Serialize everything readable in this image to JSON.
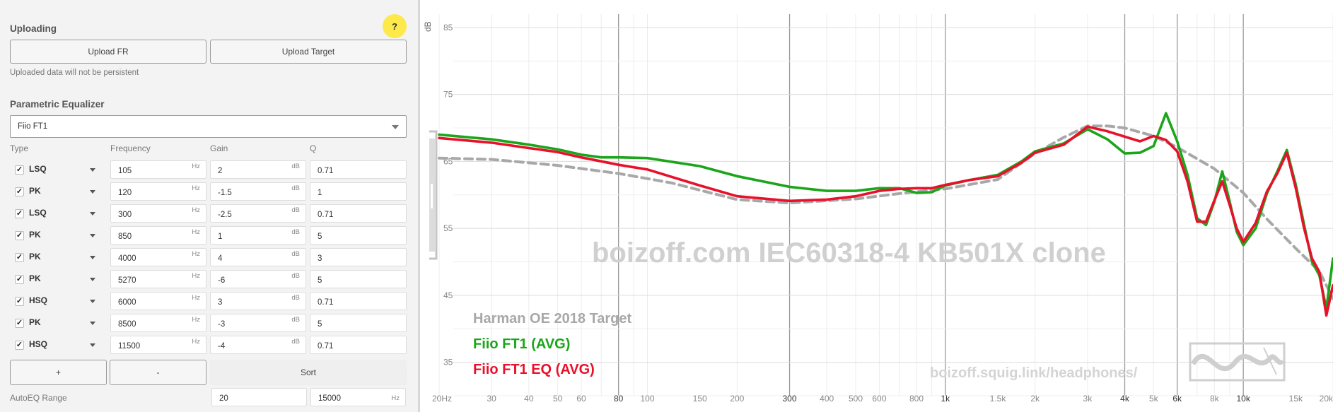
{
  "uploading": {
    "title": "Uploading",
    "upload_fr": "Upload FR",
    "upload_target": "Upload Target",
    "note": "Uploaded data will not be persistent",
    "help": "?"
  },
  "peq": {
    "title": "Parametric Equalizer",
    "preset": "Fiio FT1",
    "columns": {
      "type": "Type",
      "frequency": "Frequency",
      "gain": "Gain",
      "q": "Q"
    },
    "units": {
      "hz": "Hz",
      "db": "dB"
    },
    "filters": [
      {
        "checked": true,
        "type": "LSQ",
        "freq": "105",
        "gain": "2",
        "q": "0.71"
      },
      {
        "checked": true,
        "type": "PK",
        "freq": "120",
        "gain": "-1.5",
        "q": "1"
      },
      {
        "checked": true,
        "type": "LSQ",
        "freq": "300",
        "gain": "-2.5",
        "q": "0.71"
      },
      {
        "checked": true,
        "type": "PK",
        "freq": "850",
        "gain": "1",
        "q": "5"
      },
      {
        "checked": true,
        "type": "PK",
        "freq": "4000",
        "gain": "4",
        "q": "3"
      },
      {
        "checked": true,
        "type": "PK",
        "freq": "5270",
        "gain": "-6",
        "q": "5"
      },
      {
        "checked": true,
        "type": "HSQ",
        "freq": "6000",
        "gain": "3",
        "q": "0.71"
      },
      {
        "checked": true,
        "type": "PK",
        "freq": "8500",
        "gain": "-3",
        "q": "5"
      },
      {
        "checked": true,
        "type": "HSQ",
        "freq": "11500",
        "gain": "-4",
        "q": "0.71"
      }
    ],
    "add_label": "+",
    "remove_label": "-",
    "sort_label": "Sort",
    "autoeq_label": "AutoEQ Range",
    "autoeq_min": "20",
    "autoeq_max": "15000"
  },
  "chart_data": {
    "type": "line",
    "ylabel": "dB",
    "xscale": "log",
    "xlim": [
      20,
      20000
    ],
    "ylim": [
      30,
      87
    ],
    "y_ticks": [
      85,
      75,
      65,
      55,
      45,
      35
    ],
    "x_ticks": [
      {
        "v": 20,
        "label": "20Hz"
      },
      {
        "v": 30,
        "label": "30"
      },
      {
        "v": 40,
        "label": "40"
      },
      {
        "v": 50,
        "label": "50"
      },
      {
        "v": 60,
        "label": "60"
      },
      {
        "v": 80,
        "label": "80"
      },
      {
        "v": 100,
        "label": "100"
      },
      {
        "v": 150,
        "label": "150"
      },
      {
        "v": 200,
        "label": "200"
      },
      {
        "v": 300,
        "label": "300"
      },
      {
        "v": 400,
        "label": "400"
      },
      {
        "v": 500,
        "label": "500"
      },
      {
        "v": 600,
        "label": "600"
      },
      {
        "v": 800,
        "label": "800"
      },
      {
        "v": 1000,
        "label": "1k"
      },
      {
        "v": 1500,
        "label": "1.5k"
      },
      {
        "v": 2000,
        "label": "2k"
      },
      {
        "v": 3000,
        "label": "3k"
      },
      {
        "v": 4000,
        "label": "4k"
      },
      {
        "v": 5000,
        "label": "5k"
      },
      {
        "v": 6000,
        "label": "6k"
      },
      {
        "v": 8000,
        "label": "8k"
      },
      {
        "v": 10000,
        "label": "10k"
      },
      {
        "v": 15000,
        "label": "15k"
      },
      {
        "v": 20000,
        "label": "20k"
      }
    ],
    "bold_ticks": [
      80,
      300,
      1000,
      4000,
      6000,
      10000
    ],
    "watermark": "boizoff.com IEC60318-4 KB501X clone",
    "url": "boizoff.squig.link/headphones/",
    "grid": true,
    "series": [
      {
        "name": "Harman OE 2018 Target",
        "color": "#a8a8a8",
        "dashed": true,
        "points": [
          [
            20,
            65.5
          ],
          [
            30,
            65.3
          ],
          [
            50,
            64.4
          ],
          [
            80,
            63.2
          ],
          [
            120,
            61.8
          ],
          [
            200,
            59.3
          ],
          [
            300,
            58.8
          ],
          [
            500,
            59.4
          ],
          [
            700,
            60.2
          ],
          [
            1000,
            60.9
          ],
          [
            1500,
            62.3
          ],
          [
            2000,
            66.2
          ],
          [
            2500,
            68.6
          ],
          [
            3000,
            70.3
          ],
          [
            3500,
            70.3
          ],
          [
            4000,
            70.0
          ],
          [
            5000,
            68.8
          ],
          [
            6000,
            67.1
          ],
          [
            8000,
            63.9
          ],
          [
            10000,
            60.3
          ],
          [
            12000,
            56.4
          ],
          [
            15000,
            52.0
          ],
          [
            18000,
            48.6
          ],
          [
            20000,
            44.5
          ]
        ]
      },
      {
        "name": "Fiio FT1 (AVG)",
        "color": "#1aa51a",
        "dashed": false,
        "points": [
          [
            20,
            69.0
          ],
          [
            30,
            68.3
          ],
          [
            40,
            67.5
          ],
          [
            50,
            66.8
          ],
          [
            60,
            66.0
          ],
          [
            70,
            65.6
          ],
          [
            80,
            65.6
          ],
          [
            100,
            65.5
          ],
          [
            150,
            64.3
          ],
          [
            200,
            62.8
          ],
          [
            300,
            61.2
          ],
          [
            400,
            60.6
          ],
          [
            500,
            60.6
          ],
          [
            600,
            61.0
          ],
          [
            700,
            61.0
          ],
          [
            800,
            60.3
          ],
          [
            900,
            60.4
          ],
          [
            1000,
            61.4
          ],
          [
            1200,
            62.2
          ],
          [
            1500,
            63.0
          ],
          [
            1800,
            65.0
          ],
          [
            2000,
            66.5
          ],
          [
            2500,
            67.7
          ],
          [
            3000,
            69.8
          ],
          [
            3500,
            68.3
          ],
          [
            4000,
            66.2
          ],
          [
            4500,
            66.3
          ],
          [
            5000,
            67.3
          ],
          [
            5500,
            72.2
          ],
          [
            6000,
            68.0
          ],
          [
            6500,
            63.0
          ],
          [
            7000,
            56.5
          ],
          [
            7500,
            55.5
          ],
          [
            8000,
            59.0
          ],
          [
            8500,
            63.5
          ],
          [
            9000,
            59.0
          ],
          [
            9500,
            54.5
          ],
          [
            10000,
            52.5
          ],
          [
            11000,
            55.0
          ],
          [
            12000,
            60.2
          ],
          [
            13000,
            63.5
          ],
          [
            14000,
            66.7
          ],
          [
            15000,
            61.5
          ],
          [
            16000,
            55.5
          ],
          [
            17000,
            50.0
          ],
          [
            18000,
            48.0
          ],
          [
            19000,
            43.0
          ],
          [
            20000,
            50.5
          ]
        ]
      },
      {
        "name": "Fiio FT1 EQ (AVG)",
        "color": "#e8102a",
        "dashed": false,
        "points": [
          [
            20,
            68.5
          ],
          [
            30,
            67.8
          ],
          [
            40,
            67.0
          ],
          [
            50,
            66.4
          ],
          [
            60,
            65.6
          ],
          [
            80,
            64.5
          ],
          [
            100,
            63.8
          ],
          [
            150,
            61.4
          ],
          [
            200,
            59.8
          ],
          [
            300,
            59.1
          ],
          [
            400,
            59.3
          ],
          [
            500,
            59.8
          ],
          [
            600,
            60.6
          ],
          [
            700,
            60.9
          ],
          [
            800,
            61.0
          ],
          [
            900,
            61.0
          ],
          [
            1000,
            61.5
          ],
          [
            1200,
            62.2
          ],
          [
            1500,
            62.8
          ],
          [
            1800,
            64.8
          ],
          [
            2000,
            66.3
          ],
          [
            2500,
            67.5
          ],
          [
            3000,
            70.2
          ],
          [
            3500,
            69.5
          ],
          [
            4000,
            68.7
          ],
          [
            4500,
            68.0
          ],
          [
            5000,
            68.8
          ],
          [
            5500,
            68.2
          ],
          [
            6000,
            66.5
          ],
          [
            6500,
            62.0
          ],
          [
            7000,
            56.0
          ],
          [
            7500,
            56.0
          ],
          [
            8000,
            59.2
          ],
          [
            8500,
            62.0
          ],
          [
            9000,
            58.5
          ],
          [
            9500,
            55.0
          ],
          [
            10000,
            53.0
          ],
          [
            11000,
            55.8
          ],
          [
            12000,
            60.5
          ],
          [
            13000,
            63.2
          ],
          [
            14000,
            66.3
          ],
          [
            15000,
            61.0
          ],
          [
            16000,
            55.0
          ],
          [
            17000,
            50.5
          ],
          [
            18000,
            48.5
          ],
          [
            19000,
            42.0
          ],
          [
            20000,
            46.5
          ]
        ]
      }
    ]
  }
}
